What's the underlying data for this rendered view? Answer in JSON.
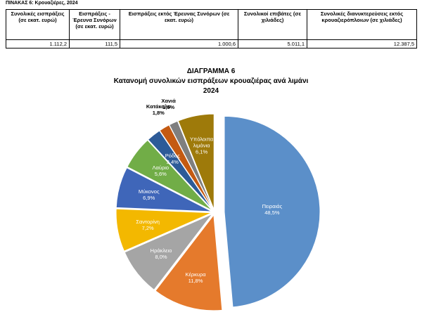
{
  "table": {
    "title": "ΠΙΝΑΚΑΣ 6: Κρουαζιέρες, 2024",
    "headers": [
      "Συνολικές εισπράξεις (σε εκατ. ευρώ)",
      "Εισπράξεις - Έρευνα Συνόρων (σε εκατ. ευρώ)",
      "Εισπράξεις εκτός Έρευνας Συνόρων (σε εκατ. ευρώ)",
      "Συνολικοί επιβάτες (σε χιλιάδες)",
      "Συνολικές διανυκτερεύσεις εκτός κρουαζιερόπλοιων (σε χιλιάδες)"
    ],
    "rows": [
      [
        "1.112,2",
        "111,5",
        "1.000,6",
        "5.011,1",
        "12.387,5"
      ]
    ]
  },
  "chart_data": {
    "type": "pie",
    "title_lines": [
      "ΔΙΑΓΡΑΜΜΑ 6",
      "Κατανομή συνολικών εισπράξεων κρουαζιέρας ανά λιμάνι",
      "2024"
    ],
    "categories": [
      "Πειραιάς",
      "Κέρκυρα",
      "Ηράκλειο",
      "Σαντορίνη",
      "Μύκονος",
      "Λαύριο",
      "Ρόδος",
      "Κατάκολο",
      "Χανιά",
      "Υπόλοιπα λιμάνια"
    ],
    "values": [
      48.5,
      11.8,
      8.0,
      7.2,
      6.9,
      5.6,
      2.4,
      1.8,
      1.5,
      6.1
    ],
    "value_labels": [
      "48,5%",
      "11,8%",
      "8,0%",
      "7,2%",
      "6,9%",
      "5,6%",
      "2,4%",
      "1,8%",
      "1,5%",
      "6,1%"
    ],
    "colors": [
      "#5b8fc9",
      "#e57a2c",
      "#a5a5a5",
      "#f3b800",
      "#3f66b9",
      "#71ad47",
      "#2d5b98",
      "#c45a12",
      "#7f7f7f",
      "#9e7a0a"
    ]
  }
}
